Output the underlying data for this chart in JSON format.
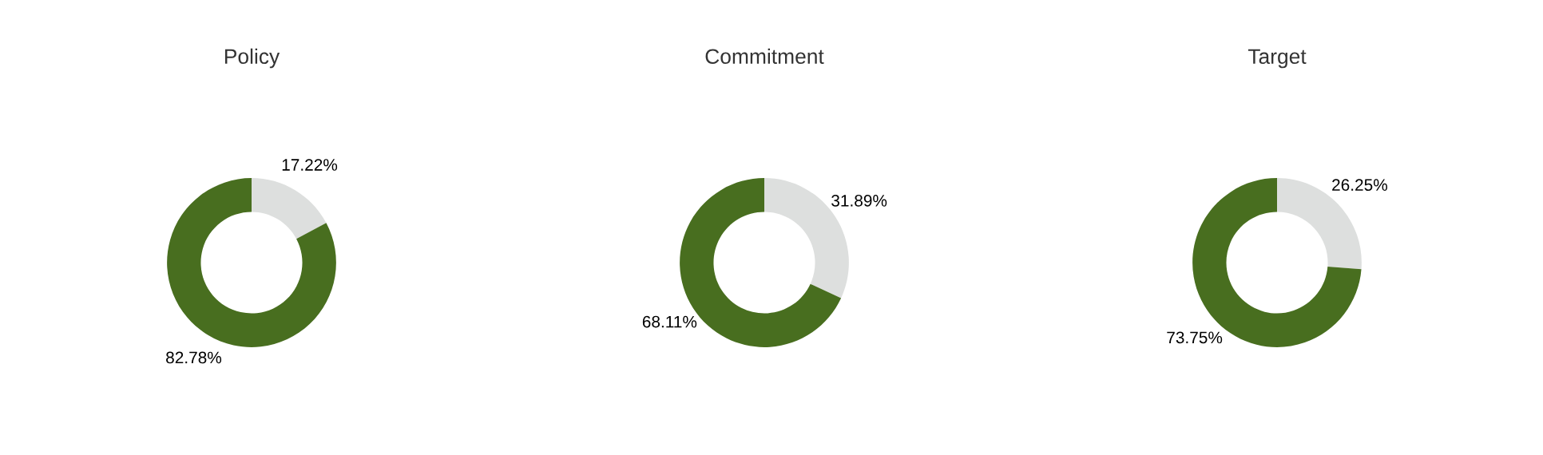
{
  "chart_data": [
    {
      "type": "donut",
      "title": "Policy",
      "categories": [
        null,
        null
      ],
      "values": [
        17.22,
        82.78
      ],
      "colors": [
        "#dddfde",
        "#486e1f"
      ],
      "value_labels": [
        "17.22%",
        "82.78%"
      ]
    },
    {
      "type": "donut",
      "title": "Commitment",
      "categories": [
        null,
        null
      ],
      "values": [
        31.89,
        68.11
      ],
      "colors": [
        "#dddfde",
        "#486e1f"
      ],
      "value_labels": [
        "31.89%",
        "68.11%"
      ]
    },
    {
      "type": "donut",
      "title": "Target",
      "categories": [
        null,
        null
      ],
      "values": [
        26.25,
        73.75
      ],
      "colors": [
        "#dddfde",
        "#486e1f"
      ],
      "value_labels": [
        "26.25%",
        "73.75%"
      ]
    }
  ]
}
